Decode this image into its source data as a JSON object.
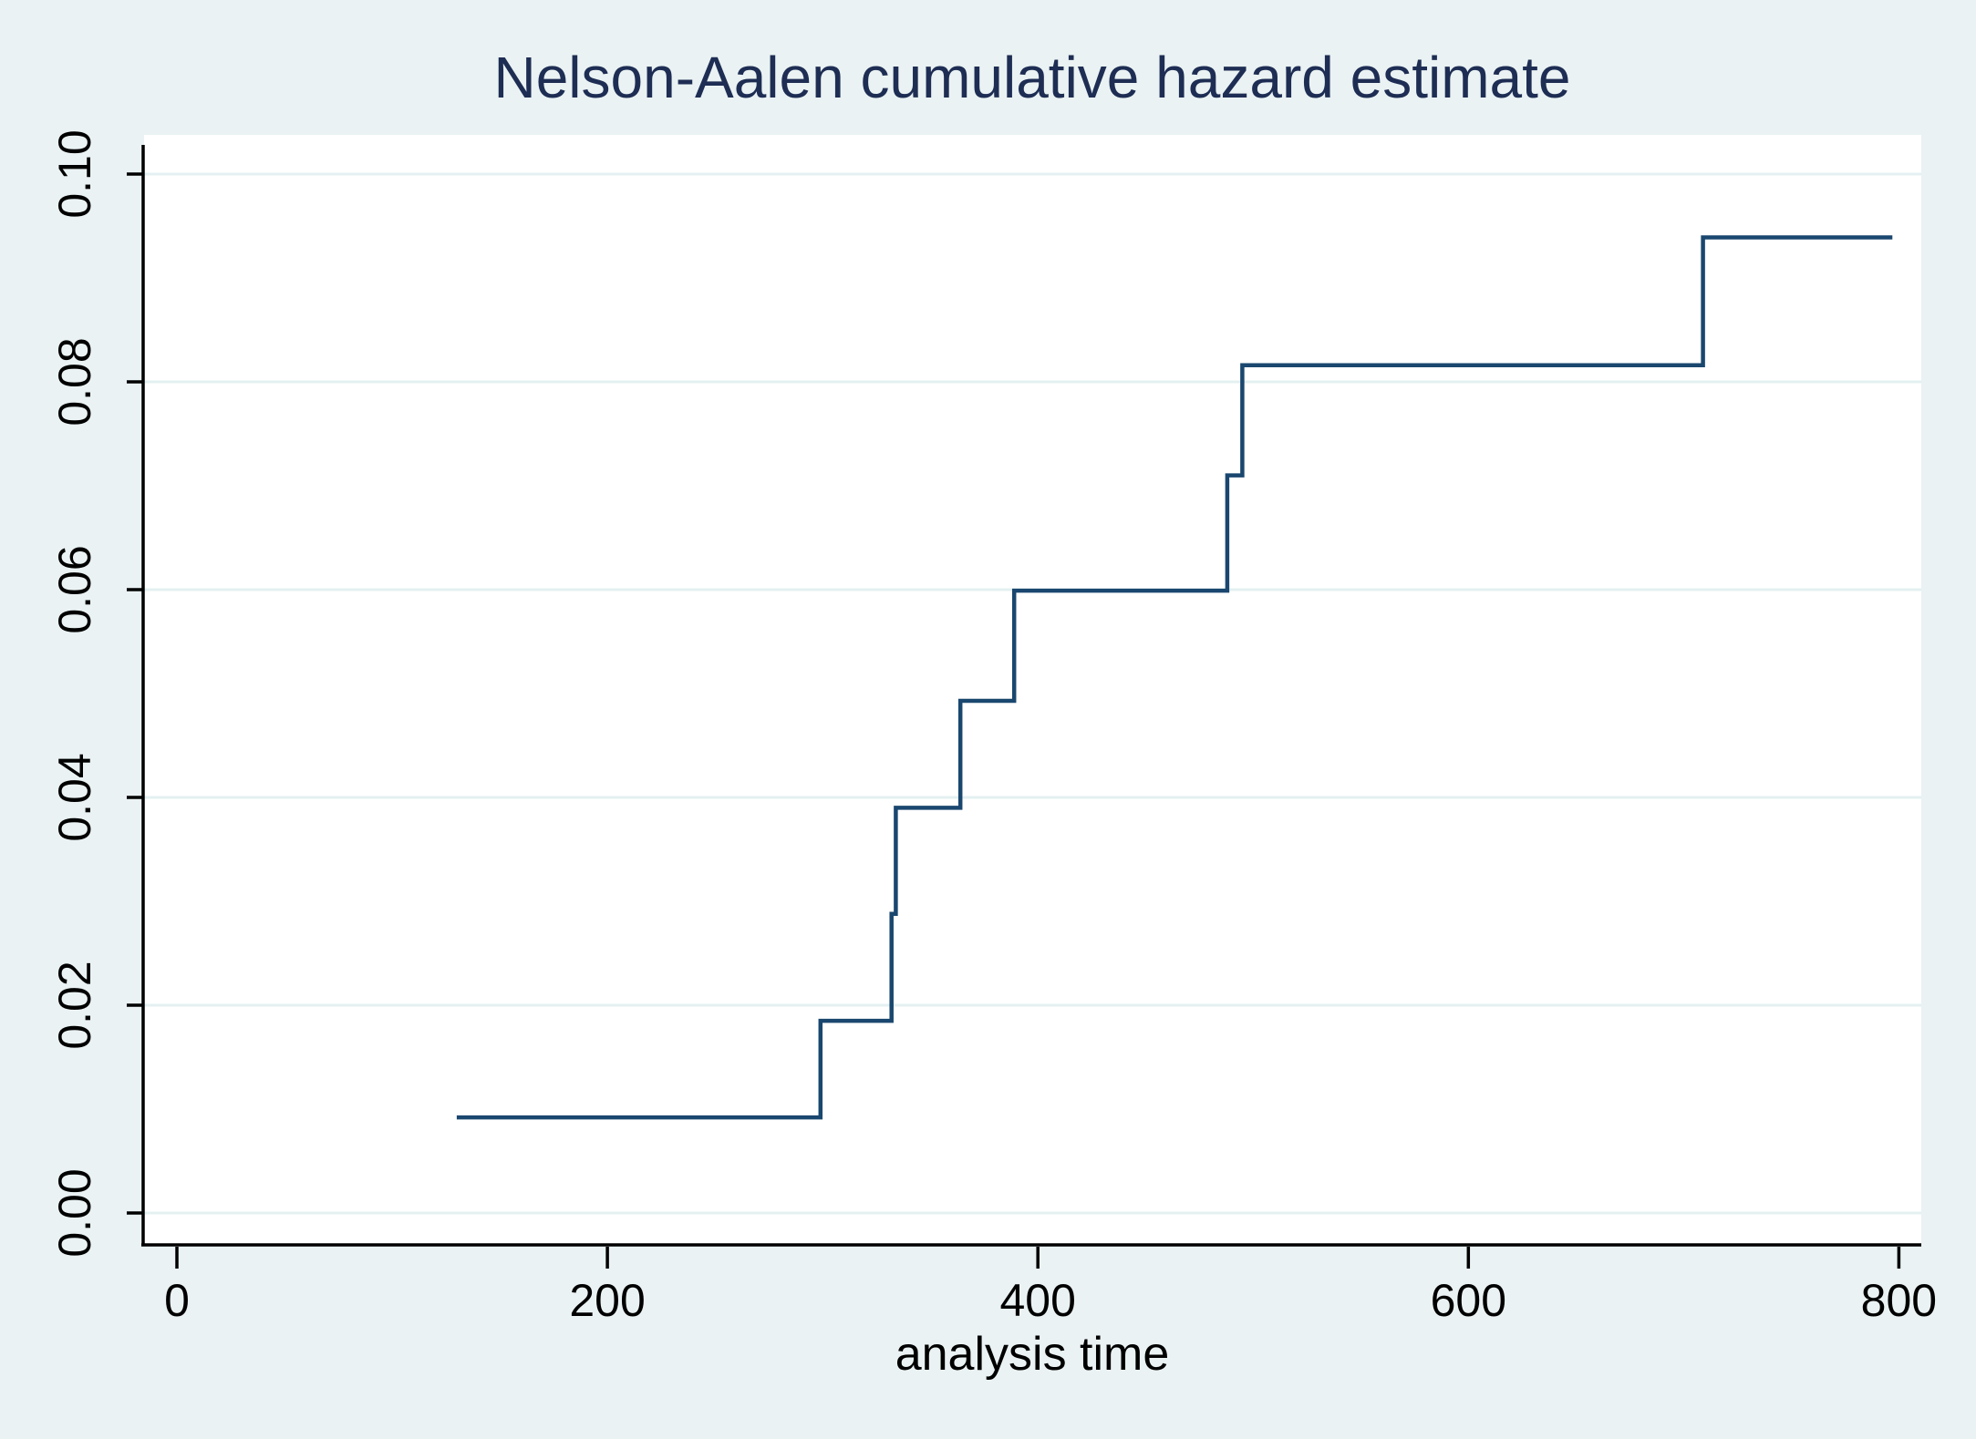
{
  "colors": {
    "page_background": "#eaf2f3",
    "plot_background": "#ffffff",
    "line": "#1a476f",
    "title_text": "#1e2d53",
    "axis_text": "#000000",
    "axis_line": "#000000",
    "gridline": "#e4f0f1"
  },
  "chart_data": {
    "type": "line",
    "subtype": "step-function",
    "title": "Nelson-Aalen cumulative hazard estimate",
    "xlabel": "analysis time",
    "ylabel": "",
    "legend": "none",
    "grid": "horizontal-only",
    "xlim": [
      -15,
      810
    ],
    "ylim": [
      0,
      0.103
    ],
    "xticks": [
      0,
      200,
      400,
      600,
      800
    ],
    "xtick_labels": [
      "0",
      "200",
      "400",
      "600",
      "800"
    ],
    "yticks": [
      0,
      0.02,
      0.04,
      0.06,
      0.08,
      0.1
    ],
    "ytick_labels": [
      "0.00",
      "0.02",
      "0.04",
      "0.06",
      "0.08",
      "0.10"
    ],
    "series": [
      {
        "name": "Nelson-Aalen cumulative hazard",
        "color": "#1a476f",
        "start": [
          130,
          0.0092
        ],
        "jumps": [
          [
            299,
            0.0185
          ],
          [
            332,
            0.0288
          ],
          [
            334,
            0.039
          ],
          [
            364,
            0.0493
          ],
          [
            389,
            0.0599
          ],
          [
            488,
            0.071
          ],
          [
            495,
            0.0816
          ],
          [
            709,
            0.0939
          ]
        ],
        "end_time": 797
      }
    ]
  }
}
